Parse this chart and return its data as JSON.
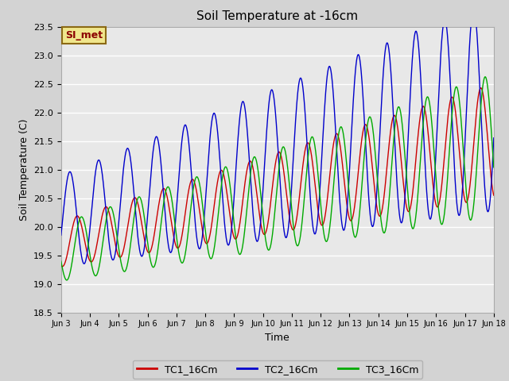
{
  "title": "Soil Temperature at -16cm",
  "xlabel": "Time",
  "ylabel": "Soil Temperature (C)",
  "ylim": [
    18.5,
    23.5
  ],
  "annotation_text": "SI_met",
  "annotation_bg": "#f0e68c",
  "annotation_border": "#8b6914",
  "annotation_text_color": "#8b0000",
  "bg_color": "#d3d3d3",
  "plot_bg": "#e8e8e8",
  "grid_color": "#ffffff",
  "tc1_color": "#cc0000",
  "tc2_color": "#0000cc",
  "tc3_color": "#00aa00",
  "legend_labels": [
    "TC1_16Cm",
    "TC2_16Cm",
    "TC3_16Cm"
  ],
  "xtick_labels": [
    "Jun 3",
    "Jun 4",
    "Jun 5",
    "Jun 6",
    "Jun 7",
    "Jun 8",
    "Jun 9",
    "Jun 10",
    "Jun 11",
    "Jun 12",
    "Jun 13",
    "Jun 14",
    "Jun 15",
    "Jun 16",
    "Jun 17",
    "Jun 18"
  ],
  "n_days": 15,
  "samples_per_day": 96
}
